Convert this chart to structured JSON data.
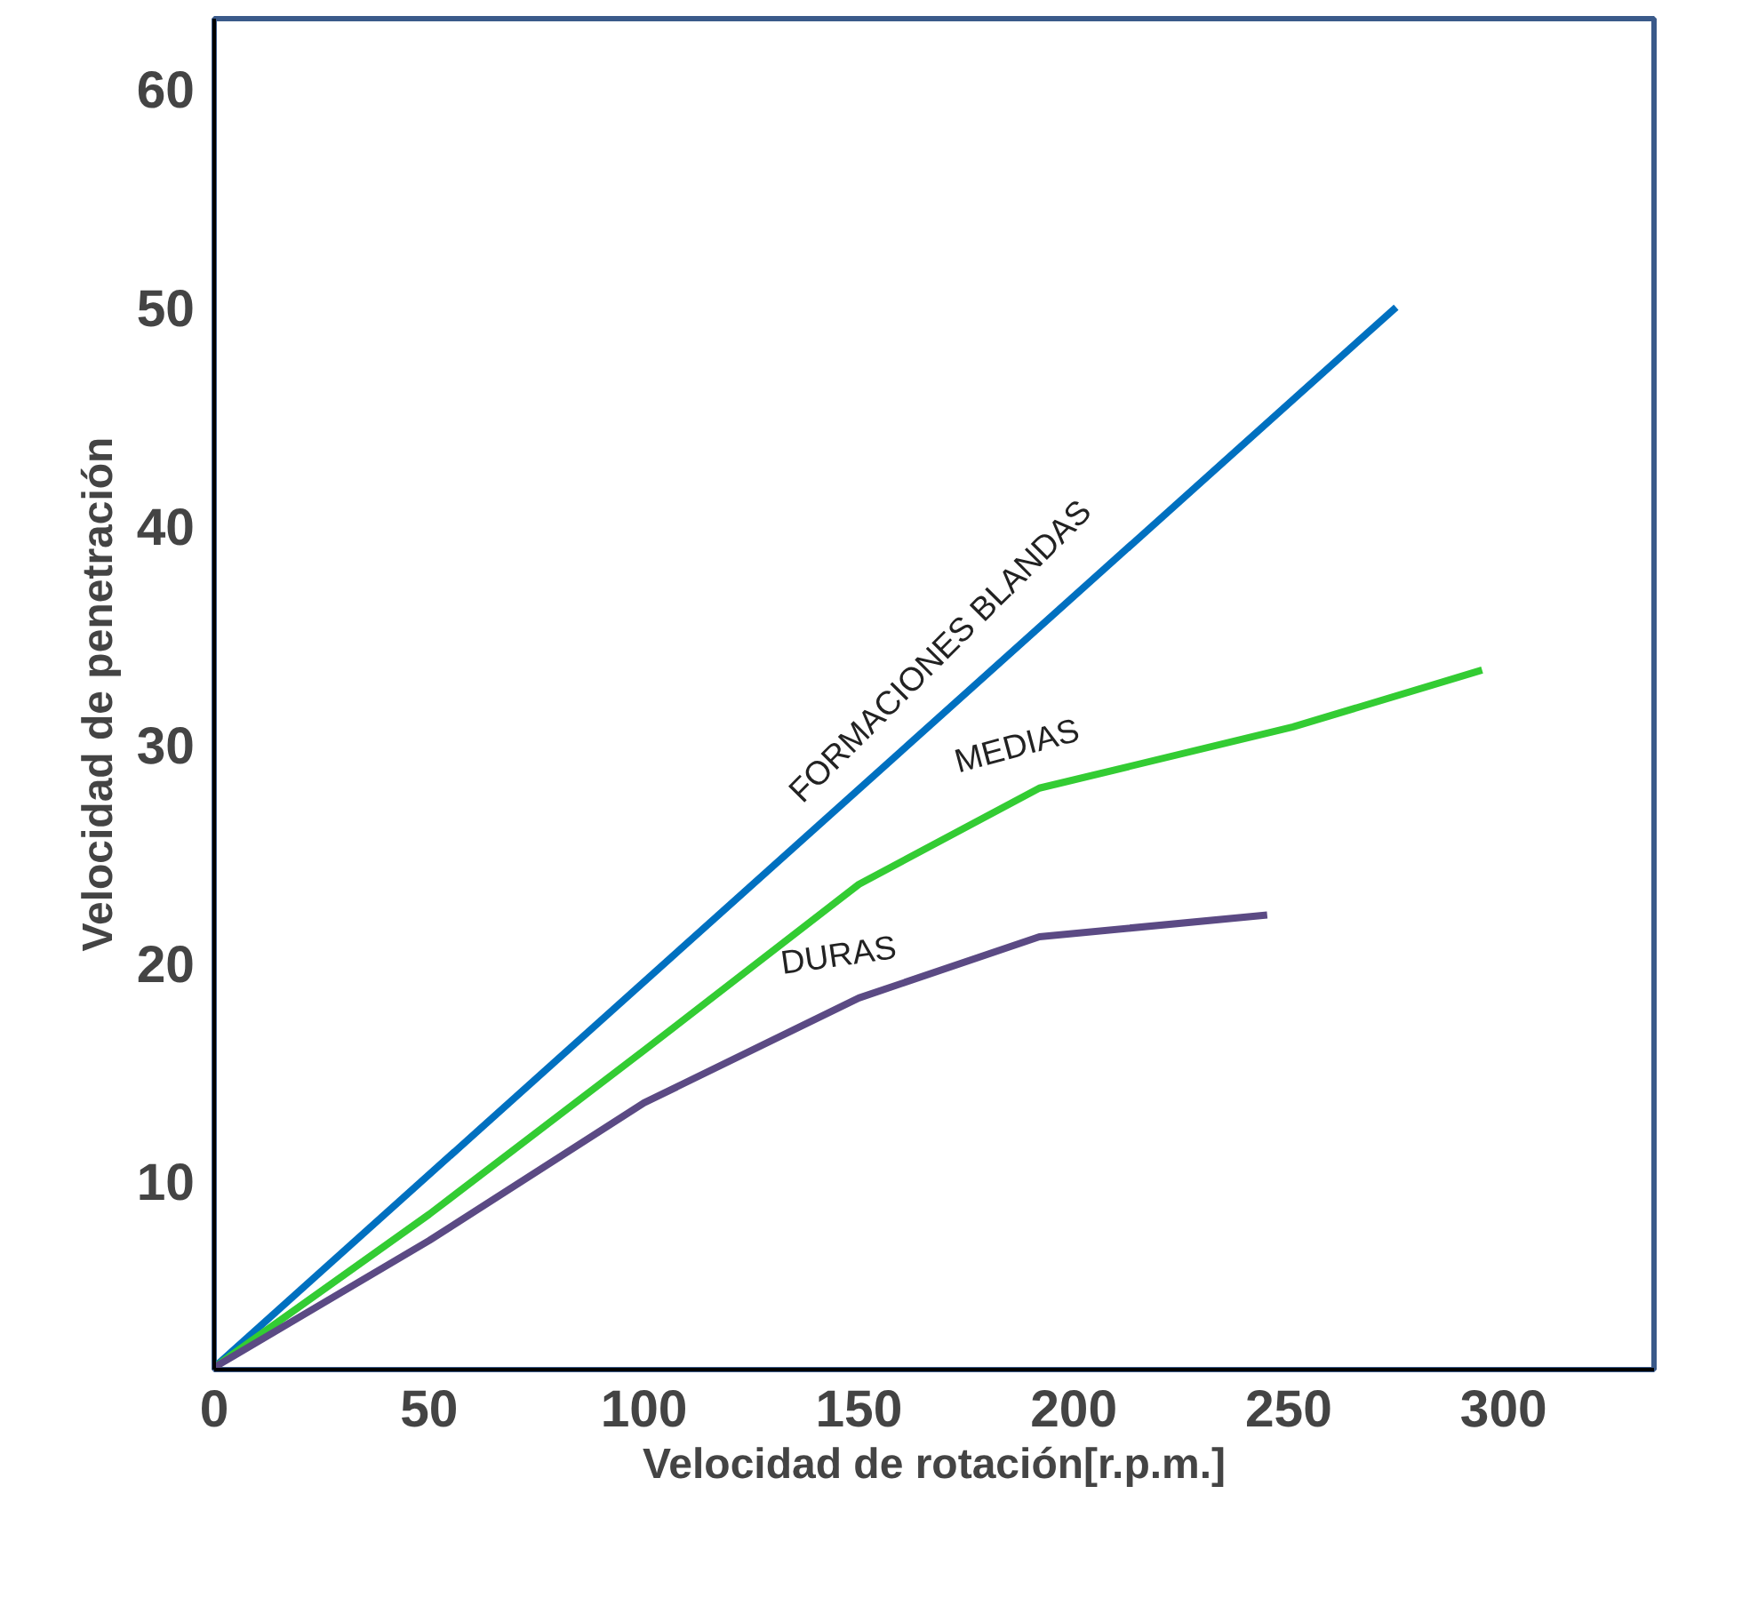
{
  "chart_data": {
    "type": "line",
    "xlabel": "Velocidad de rotación[r.p.m.]",
    "ylabel": "Velocidad de penetración",
    "xlim": [
      0,
      335
    ],
    "ylim": [
      1.4,
      63.2
    ],
    "xticks": [
      0,
      50,
      100,
      150,
      200,
      250,
      300
    ],
    "yticks": [
      10,
      20,
      30,
      40,
      50,
      60
    ],
    "grid": false,
    "legend": false,
    "marker": "none",
    "line_style": "solid",
    "series": [
      {
        "name": "FORMACIONES BLANDAS",
        "color": "#0070c0",
        "x": [
          0,
          275
        ],
        "values": [
          1.5,
          50
        ]
      },
      {
        "name": "MEDIAS",
        "color": "#33cc33",
        "x": [
          0,
          50,
          100,
          150,
          192,
          251,
          295
        ],
        "values": [
          1.5,
          8.5,
          16,
          23.6,
          28,
          30.8,
          33.4
        ]
      },
      {
        "name": "DURAS",
        "color": "#5b4a84",
        "x": [
          0,
          50,
          100,
          150,
          192,
          245
        ],
        "values": [
          1.5,
          7.3,
          13.6,
          18.4,
          21.2,
          22.2
        ]
      }
    ]
  }
}
